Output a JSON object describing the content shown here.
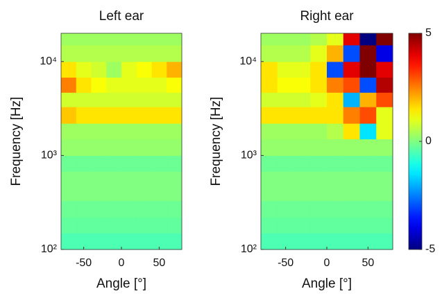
{
  "chart_data": [
    {
      "type": "heatmap",
      "title": "Left ear",
      "xlabel": "Angle [°]",
      "ylabel": "Frequency [Hz]",
      "xlim": [
        -80,
        80
      ],
      "xticks": [
        -50,
        0,
        50
      ],
      "ylim": [
        100,
        20000
      ],
      "log_y": true,
      "yticks": [
        {
          "value": 100,
          "label": "10²"
        },
        {
          "value": 1000,
          "label": "10³"
        },
        {
          "value": 10000,
          "label": "10⁴"
        }
      ],
      "x_bins": [
        -80,
        -60,
        -40,
        -20,
        0,
        20,
        40,
        60,
        80
      ],
      "y_bins": [
        100,
        150,
        220,
        330,
        470,
        680,
        1000,
        1500,
        2200,
        3300,
        4700,
        6800,
        10000,
        15000,
        20000
      ],
      "z": [
        [
          -0.5,
          -0.5,
          -0.5,
          -0.5,
          -0.5,
          -0.5,
          -0.5,
          -0.5
        ],
        [
          -0.3,
          -0.3,
          -0.3,
          -0.3,
          -0.3,
          -0.3,
          -0.3,
          -0.3
        ],
        [
          -0.2,
          -0.2,
          -0.2,
          -0.2,
          -0.2,
          -0.2,
          -0.2,
          -0.2
        ],
        [
          0,
          0,
          0,
          0,
          0,
          0,
          0,
          0
        ],
        [
          0,
          0,
          0,
          0,
          0,
          0,
          0,
          0
        ],
        [
          -0.2,
          -0.2,
          -0.2,
          -0.2,
          -0.2,
          -0.2,
          -0.2,
          -0.2
        ],
        [
          0.2,
          0.2,
          0.2,
          0.2,
          0.2,
          0.2,
          0.2,
          0.2
        ],
        [
          0.3,
          0.3,
          0.3,
          0.3,
          0.3,
          0.3,
          0.3,
          0.3
        ],
        [
          1.8,
          1.5,
          1.5,
          1.5,
          1.5,
          1.5,
          1.5,
          1.5
        ],
        [
          0.8,
          0.8,
          0.8,
          0.8,
          0.8,
          0.8,
          0.8,
          0.8
        ],
        [
          2.5,
          1.5,
          1.2,
          1,
          1,
          1,
          1,
          1.2
        ],
        [
          1.5,
          1,
          0.8,
          0.3,
          1,
          1.2,
          1.5,
          2
        ],
        [
          0.5,
          0.5,
          0.5,
          0.5,
          0.5,
          0.5,
          0.5,
          0.5
        ],
        [
          0.3,
          0.3,
          0.3,
          0.3,
          0.3,
          0.3,
          0.3,
          0.3
        ]
      ]
    },
    {
      "type": "heatmap",
      "title": "Right ear",
      "xlabel": "Angle [°]",
      "ylabel": "Frequency [Hz]",
      "xlim": [
        -80,
        80
      ],
      "xticks": [
        -50,
        0,
        50
      ],
      "ylim": [
        100,
        20000
      ],
      "log_y": true,
      "yticks": [
        {
          "value": 100,
          "label": "10²"
        },
        {
          "value": 1000,
          "label": "10³"
        },
        {
          "value": 10000,
          "label": "10⁴"
        }
      ],
      "x_bins": [
        -80,
        -60,
        -40,
        -20,
        0,
        20,
        40,
        60,
        80
      ],
      "y_bins": [
        100,
        150,
        220,
        330,
        470,
        680,
        1000,
        1500,
        2200,
        3300,
        4700,
        6800,
        10000,
        15000,
        20000
      ],
      "z": [
        [
          -0.5,
          -0.5,
          -0.5,
          -0.5,
          -0.5,
          -0.5,
          -0.5,
          -0.5
        ],
        [
          -0.3,
          -0.3,
          -0.3,
          -0.3,
          -0.3,
          -0.3,
          -0.3,
          -0.3
        ],
        [
          -0.2,
          -0.2,
          -0.2,
          -0.2,
          -0.2,
          -0.2,
          -0.2,
          -0.2
        ],
        [
          0,
          0,
          0,
          0,
          0,
          0,
          0,
          0
        ],
        [
          0,
          0,
          0,
          0,
          0,
          0,
          0,
          0
        ],
        [
          -0.2,
          -0.2,
          -0.2,
          -0.2,
          -0.2,
          -0.2,
          -0.2,
          -0.2
        ],
        [
          0.2,
          0.2,
          0.2,
          0.2,
          0.2,
          0.2,
          0.2,
          0.2
        ],
        [
          0.3,
          0.3,
          0.3,
          0.3,
          0.5,
          1.5,
          -1.5,
          1
        ],
        [
          1.5,
          1.5,
          1.5,
          1.5,
          1.5,
          2.5,
          3,
          1
        ],
        [
          0.8,
          0.8,
          0.8,
          1,
          1.5,
          -2,
          2,
          3
        ],
        [
          1.5,
          1.2,
          1.2,
          1.5,
          2.5,
          3,
          -3,
          4.5
        ],
        [
          1.5,
          1,
          1,
          1.5,
          -3,
          4,
          5,
          4
        ],
        [
          0.5,
          0.5,
          0.5,
          1,
          2,
          -3,
          5,
          -4
        ],
        [
          0.3,
          0.3,
          0.3,
          0.5,
          1,
          4,
          -5,
          5
        ]
      ]
    },
    {
      "type": "colorbar",
      "colormap": "jet",
      "clim": [
        -5,
        5
      ],
      "ticks": [
        -5,
        0,
        5
      ]
    }
  ]
}
